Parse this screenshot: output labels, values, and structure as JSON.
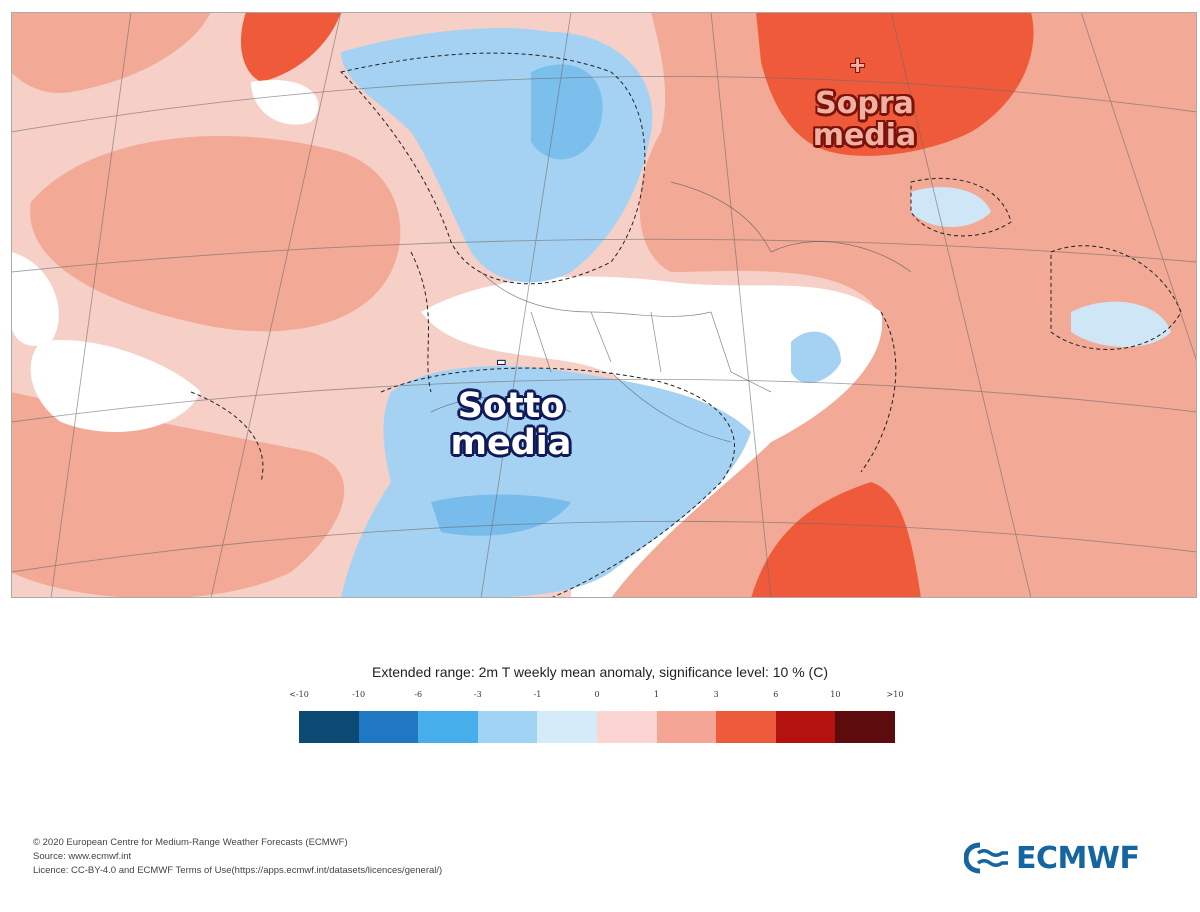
{
  "map": {
    "labels": {
      "below_sign": "-",
      "below_text": "Sotto\nmedia",
      "above_sign": "+",
      "above_text": "Sopra\nmedia"
    },
    "colors": {
      "ocean_pale": "#f6cfc7",
      "warm_light": "#f2a996",
      "warm_strong": "#ef5a3a",
      "cool_light": "#cfe6f7",
      "cool_mid": "#a5d2f2",
      "cool_strong": "#5aaee8",
      "neutral": "#ffffff"
    }
  },
  "legend": {
    "title": "Extended range: 2m T weekly mean anomaly, significance level: 10 % (C)",
    "ticks": [
      "<-10",
      "-10",
      "-6",
      "-3",
      "-1",
      "0",
      "1",
      "3",
      "6",
      "10",
      ">10"
    ],
    "colors": [
      "#0b4a73",
      "#1f78c1",
      "#46aeea",
      "#a1d4f4",
      "#d6ebf8",
      "#fbd5d1",
      "#f4a596",
      "#ee5a3c",
      "#b3120e",
      "#5c0c0c"
    ]
  },
  "footer": {
    "line1": "© 2020 European Centre for Medium-Range Weather Forecasts (ECMWF)",
    "line2": "Source: www.ecmwf.int",
    "line3": "Licence: CC-BY-4.0 and ECMWF Terms of Use(https://apps.ecmwf.int/datasets/licences/general/)"
  },
  "logo": {
    "text": "ECMWF",
    "color": "#1565a0"
  }
}
